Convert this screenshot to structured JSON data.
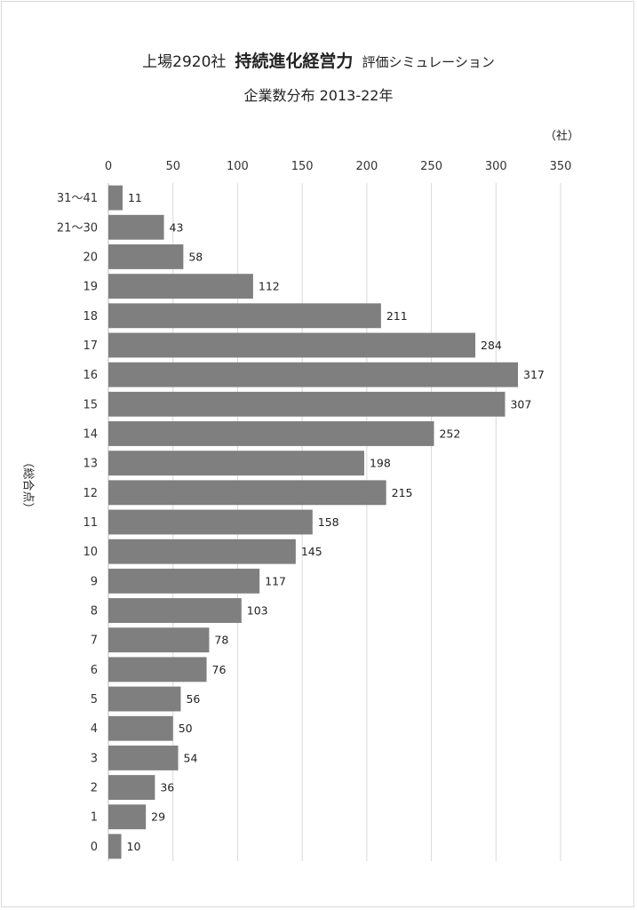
{
  "title": {
    "prefix": "上場2920社",
    "main": "持続進化経営力",
    "suffix": "評価シミュレーション"
  },
  "subtitle": "企業数分布 2013-22年",
  "unit_label": "（社）",
  "ylabel": "（総合点）",
  "colors": {
    "bar": "#7f7f7f",
    "grid": "#d9d9d9",
    "axis": "#bfbfbf"
  },
  "chart_data": {
    "type": "bar",
    "orientation": "horizontal",
    "title": "上場2920社 持続進化経営力 評価シミュレーション",
    "subtitle": "企業数分布 2013-22年",
    "xlabel": "（社）",
    "ylabel": "（総合点）",
    "xlim": [
      0,
      350
    ],
    "xticks": [
      0,
      50,
      100,
      150,
      200,
      250,
      300,
      350
    ],
    "grid": true,
    "categories": [
      "31～41",
      "21～30",
      "20",
      "19",
      "18",
      "17",
      "16",
      "15",
      "14",
      "13",
      "12",
      "11",
      "10",
      "9",
      "8",
      "7",
      "6",
      "5",
      "4",
      "3",
      "2",
      "1",
      "0"
    ],
    "values": [
      11,
      43,
      58,
      112,
      211,
      284,
      317,
      307,
      252,
      198,
      215,
      158,
      145,
      117,
      103,
      78,
      76,
      56,
      50,
      54,
      36,
      29,
      10
    ]
  }
}
